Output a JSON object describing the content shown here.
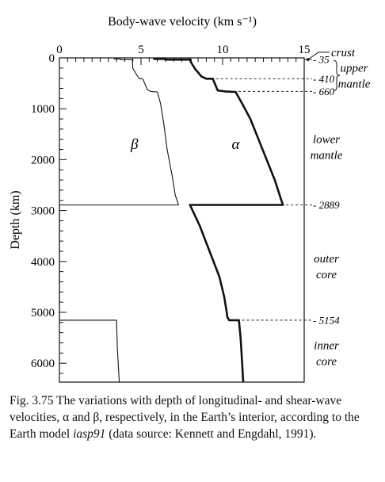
{
  "chart_data": {
    "type": "line",
    "title": "Body-wave velocity (km s⁻¹)",
    "xlabel": "Body-wave velocity (km s⁻¹)",
    "ylabel": "Depth (km)",
    "xlim": [
      0,
      15
    ],
    "ylim": [
      6371,
      0
    ],
    "x_ticks": [
      "0",
      "5",
      "10",
      "15"
    ],
    "y_ticks": [
      "0",
      "1000",
      "2000",
      "3000",
      "4000",
      "5000",
      "6000"
    ],
    "y_tick_values": [
      0,
      1000,
      2000,
      3000,
      4000,
      5000,
      6000
    ],
    "series": [
      {
        "name": "α",
        "points": [
          [
            5.8,
            0
          ],
          [
            5.8,
            20
          ],
          [
            6.5,
            20
          ],
          [
            6.5,
            35
          ],
          [
            8.04,
            35
          ],
          [
            8.05,
            80
          ],
          [
            8.3,
            210
          ],
          [
            8.7,
            365
          ],
          [
            9.0,
            410
          ],
          [
            9.4,
            410
          ],
          [
            9.7,
            640
          ],
          [
            10.2,
            660
          ],
          [
            10.8,
            670
          ],
          [
            11.2,
            900
          ],
          [
            11.7,
            1200
          ],
          [
            12.2,
            1600
          ],
          [
            12.7,
            2000
          ],
          [
            13.2,
            2400
          ],
          [
            13.6,
            2800
          ],
          [
            13.7,
            2889
          ],
          [
            8.0,
            2889
          ],
          [
            8.6,
            3300
          ],
          [
            9.2,
            3800
          ],
          [
            9.8,
            4300
          ],
          [
            10.1,
            4700
          ],
          [
            10.3,
            5100
          ],
          [
            10.4,
            5154
          ],
          [
            11.0,
            5154
          ],
          [
            11.1,
            5500
          ],
          [
            11.2,
            6000
          ],
          [
            11.26,
            6371
          ]
        ]
      },
      {
        "name": "β",
        "points": [
          [
            3.36,
            0
          ],
          [
            3.36,
            20
          ],
          [
            3.75,
            20
          ],
          [
            3.75,
            35
          ],
          [
            4.47,
            35
          ],
          [
            4.48,
            80
          ],
          [
            4.5,
            210
          ],
          [
            4.8,
            365
          ],
          [
            4.9,
            410
          ],
          [
            5.1,
            410
          ],
          [
            5.4,
            630
          ],
          [
            5.6,
            660
          ],
          [
            6.0,
            670
          ],
          [
            6.2,
            900
          ],
          [
            6.4,
            1300
          ],
          [
            6.6,
            1800
          ],
          [
            6.9,
            2300
          ],
          [
            7.1,
            2700
          ],
          [
            7.3,
            2889
          ],
          [
            0,
            2889
          ],
          [
            0,
            5154
          ],
          [
            3.5,
            5154
          ],
          [
            3.55,
            5700
          ],
          [
            3.67,
            6371
          ]
        ]
      }
    ],
    "annotations": {
      "boundary_depths": [
        {
          "label": "35",
          "depth": 35
        },
        {
          "label": "410",
          "depth": 410
        },
        {
          "label": "660",
          "depth": 660
        },
        {
          "label": "2889",
          "depth": 2889
        },
        {
          "label": "5154",
          "depth": 5154
        }
      ],
      "layer_labels": [
        {
          "lines": [
            "crust"
          ],
          "depth": -110
        },
        {
          "lines": [
            "upper",
            "mantle"
          ],
          "depth": 350
        },
        {
          "lines": [
            "lower",
            "mantle"
          ],
          "depth": 1750
        },
        {
          "lines": [
            "outer",
            "core"
          ],
          "depth": 4100
        },
        {
          "lines": [
            "inner",
            "core"
          ],
          "depth": 5800
        }
      ],
      "curve_labels": [
        {
          "text": "β",
          "x": 4.6,
          "depth": 1700
        },
        {
          "text": "α",
          "x": 10.8,
          "depth": 1700
        }
      ]
    }
  },
  "caption": {
    "lead": "Fig. 3.75  The variations with depth of longitudinal- and shear-wave velocities, α and β, respectively, in the Earth’s interior, according to the Earth model ",
    "model": "iasp91",
    "tail": " (data source: Kennett and Engdahl, 1991)."
  }
}
